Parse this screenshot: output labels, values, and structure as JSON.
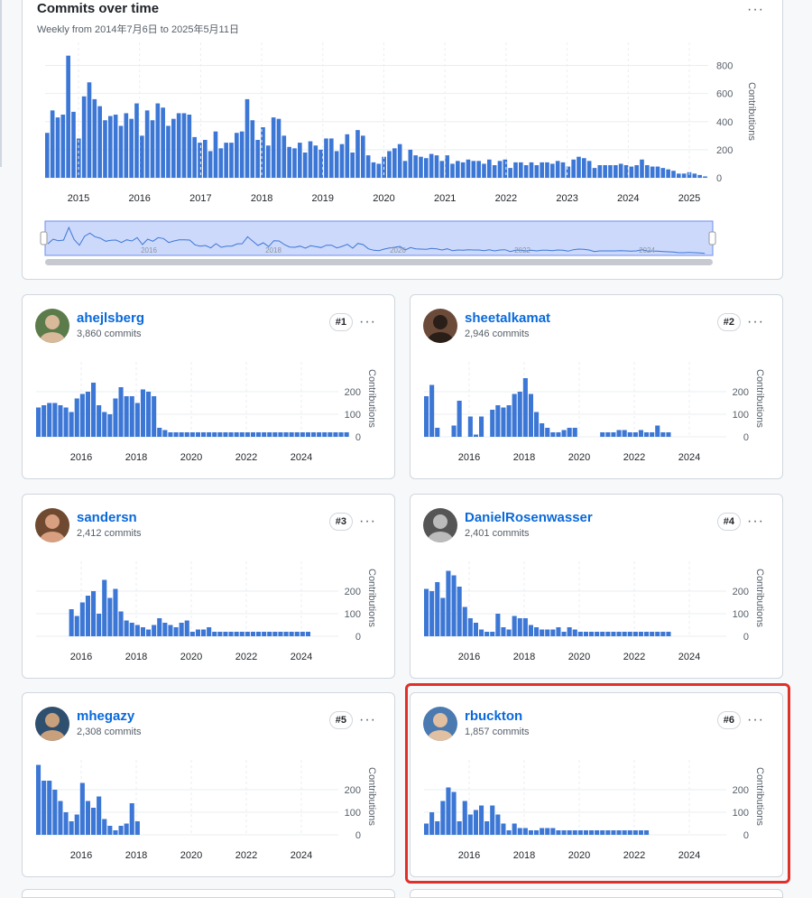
{
  "overview": {
    "title": "Commits over time",
    "subtitle": "Weekly from 2014年7月6日 to 2025年5月11日",
    "menu_glyph": "···",
    "y_axis_label": "Contributions",
    "accent": "#3c77d6",
    "chart_data": {
      "type": "bar",
      "title": "Commits over time",
      "ylabel": "Contributions",
      "ylim": [
        0,
        900
      ],
      "y_ticks": [
        0,
        200,
        400,
        600,
        800
      ],
      "x_ticks": [
        "2015",
        "2016",
        "2017",
        "2018",
        "2019",
        "2020",
        "2021",
        "2022",
        "2023",
        "2024",
        "2025"
      ],
      "brush_labels": [
        "2016",
        "2018",
        "2020",
        "2022",
        "2024"
      ],
      "values": [
        320,
        480,
        430,
        450,
        870,
        470,
        280,
        580,
        680,
        560,
        510,
        410,
        440,
        450,
        370,
        460,
        420,
        530,
        300,
        480,
        410,
        530,
        500,
        370,
        420,
        460,
        460,
        450,
        290,
        250,
        270,
        190,
        330,
        210,
        250,
        250,
        320,
        330,
        560,
        410,
        270,
        360,
        230,
        430,
        420,
        300,
        220,
        210,
        250,
        180,
        260,
        230,
        200,
        280,
        280,
        190,
        240,
        310,
        180,
        340,
        300,
        160,
        110,
        100,
        150,
        190,
        210,
        240,
        120,
        200,
        160,
        150,
        140,
        170,
        160,
        120,
        160,
        100,
        120,
        110,
        130,
        120,
        120,
        100,
        130,
        90,
        120,
        130,
        70,
        110,
        110,
        90,
        110,
        90,
        110,
        110,
        100,
        120,
        110,
        80,
        130,
        150,
        140,
        120,
        70,
        90,
        90,
        90,
        90,
        100,
        90,
        80,
        90,
        130,
        90,
        80,
        80,
        70,
        60,
        50,
        30,
        30,
        40,
        30,
        20,
        10
      ]
    }
  },
  "contributors": [
    {
      "name": "ahejlsberg",
      "commits": "3,860 commits",
      "rank": "#1",
      "avatar": "person-avatar",
      "chart_data": {
        "type": "bar",
        "ylabel": "Contributions",
        "ylim": [
          0,
          300
        ],
        "y_ticks": [
          0,
          100,
          200
        ],
        "x_ticks": [
          "2016",
          "2018",
          "2020",
          "2022",
          "2024"
        ],
        "values": [
          130,
          140,
          150,
          150,
          140,
          130,
          110,
          170,
          190,
          200,
          240,
          140,
          110,
          100,
          170,
          220,
          180,
          180,
          150,
          210,
          200,
          180,
          40,
          30,
          20,
          20,
          20,
          20,
          20,
          20,
          20,
          20,
          20,
          20,
          20,
          20,
          20,
          20,
          20,
          20,
          20,
          20,
          20,
          20,
          20,
          20,
          20,
          20,
          20,
          20,
          20,
          20,
          20,
          20,
          20,
          20,
          20
        ]
      }
    },
    {
      "name": "sheetalkamat",
      "commits": "2,946 commits",
      "rank": "#2",
      "avatar": "person-avatar",
      "chart_data": {
        "type": "bar",
        "ylabel": "Contributions",
        "ylim": [
          0,
          300
        ],
        "y_ticks": [
          0,
          100,
          200
        ],
        "x_ticks": [
          "2016",
          "2018",
          "2020",
          "2022",
          "2024"
        ],
        "values": [
          180,
          230,
          40,
          0,
          0,
          50,
          160,
          0,
          90,
          10,
          90,
          0,
          120,
          140,
          130,
          140,
          190,
          200,
          260,
          190,
          110,
          60,
          40,
          20,
          20,
          30,
          40,
          40,
          0,
          0,
          0,
          0,
          20,
          20,
          20,
          30,
          30,
          20,
          20,
          30,
          20,
          20,
          50,
          20,
          20
        ]
      }
    },
    {
      "name": "sandersn",
      "commits": "2,412 commits",
      "rank": "#3",
      "avatar": "person-avatar",
      "chart_data": {
        "type": "bar",
        "ylabel": "Contributions",
        "ylim": [
          0,
          300
        ],
        "y_ticks": [
          0,
          100,
          200
        ],
        "x_ticks": [
          "2016",
          "2018",
          "2020",
          "2022",
          "2024"
        ],
        "values": [
          0,
          0,
          0,
          0,
          0,
          0,
          120,
          90,
          150,
          180,
          200,
          100,
          250,
          170,
          210,
          110,
          70,
          60,
          50,
          40,
          30,
          50,
          80,
          60,
          50,
          40,
          60,
          70,
          20,
          30,
          30,
          40,
          20,
          20,
          20,
          20,
          20,
          20,
          20,
          20,
          20,
          20,
          20,
          20,
          20,
          20,
          20,
          20,
          20,
          20
        ]
      }
    },
    {
      "name": "DanielRosenwasser",
      "commits": "2,401 commits",
      "rank": "#4",
      "avatar": "person-avatar",
      "chart_data": {
        "type": "bar",
        "ylabel": "Contributions",
        "ylim": [
          0,
          300
        ],
        "y_ticks": [
          0,
          100,
          200
        ],
        "x_ticks": [
          "2016",
          "2018",
          "2020",
          "2022",
          "2024"
        ],
        "values": [
          210,
          200,
          240,
          170,
          290,
          270,
          220,
          130,
          80,
          60,
          30,
          20,
          20,
          100,
          40,
          30,
          90,
          80,
          80,
          50,
          40,
          30,
          30,
          30,
          40,
          20,
          40,
          30,
          20,
          20,
          20,
          20,
          20,
          20,
          20,
          20,
          20,
          20,
          20,
          20,
          20,
          20,
          20,
          20,
          20
        ]
      }
    },
    {
      "name": "mhegazy",
      "commits": "2,308 commits",
      "rank": "#5",
      "avatar": "person-avatar",
      "chart_data": {
        "type": "bar",
        "ylabel": "Contributions",
        "ylim": [
          0,
          300
        ],
        "y_ticks": [
          0,
          100,
          200
        ],
        "x_ticks": [
          "2016",
          "2018",
          "2020",
          "2022",
          "2024"
        ],
        "values": [
          310,
          240,
          240,
          200,
          150,
          100,
          60,
          90,
          230,
          150,
          120,
          170,
          70,
          40,
          20,
          40,
          50,
          140,
          60
        ]
      }
    },
    {
      "name": "rbuckton",
      "commits": "1,857 commits",
      "rank": "#6",
      "avatar": "person-avatar",
      "chart_data": {
        "type": "bar",
        "ylabel": "Contributions",
        "ylim": [
          0,
          300
        ],
        "y_ticks": [
          0,
          100,
          200
        ],
        "x_ticks": [
          "2016",
          "2018",
          "2020",
          "2022",
          "2024"
        ],
        "values": [
          50,
          100,
          60,
          150,
          210,
          190,
          60,
          150,
          90,
          110,
          130,
          60,
          130,
          90,
          50,
          20,
          50,
          30,
          30,
          20,
          20,
          30,
          30,
          30,
          20,
          20,
          20,
          20,
          20,
          20,
          20,
          20,
          20,
          20,
          20,
          20,
          20,
          20,
          20,
          20,
          20
        ]
      }
    }
  ],
  "highlight_color": "#e0302a"
}
